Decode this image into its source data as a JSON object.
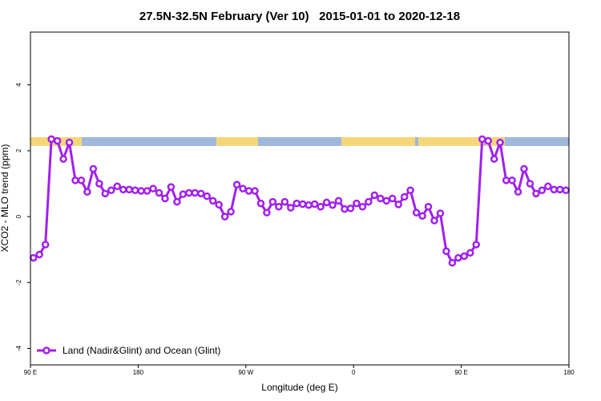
{
  "chart_data": {
    "type": "line",
    "title": "27.5N-32.5N February (Ver 10)   2015-01-01 to 2020-12-18",
    "x_label": "Longitude (deg E)",
    "y_label": "XCO2 - MLO trend (ppm)",
    "x": [
      92.5,
      97.5,
      102.5,
      107.5,
      112.5,
      117.5,
      122.5,
      127.5,
      132.5,
      137.5,
      142.5,
      147.5,
      152.5,
      157.5,
      162.5,
      167.5,
      172.5,
      177.5,
      182.5,
      187.5,
      192.5,
      197.5,
      202.5,
      207.5,
      212.5,
      217.5,
      222.5,
      227.5,
      232.5,
      237.5,
      242.5,
      247.5,
      252.5,
      257.5,
      262.5,
      267.5,
      272.5,
      277.5,
      282.5,
      287.5,
      292.5,
      297.5,
      302.5,
      307.5,
      312.5,
      317.5,
      322.5,
      327.5,
      332.5,
      337.5,
      342.5,
      347.5,
      352.5,
      357.5,
      362.5,
      367.5,
      372.5,
      377.5,
      382.5,
      387.5,
      392.5,
      397.5,
      402.5,
      407.5,
      412.5,
      417.5,
      422.5,
      427.5,
      432.5,
      437.5,
      442.5,
      447.5,
      452.5,
      457.5,
      462.5,
      467.5,
      472.5,
      477.5,
      482.5,
      487.5,
      492.5,
      497.5,
      502.5,
      507.5,
      512.5,
      517.5,
      522.5,
      527.5,
      532.5,
      537.5
    ],
    "series": [
      {
        "name": "Land (Nadir&Glint) and Ocean (Glint)",
        "color": "#a020f0",
        "values": [
          -1.25,
          -1.15,
          -0.85,
          2.35,
          2.3,
          1.75,
          2.25,
          1.1,
          1.1,
          0.75,
          1.45,
          1.0,
          0.7,
          0.8,
          0.92,
          0.82,
          0.82,
          0.8,
          0.78,
          0.78,
          0.85,
          0.72,
          0.55,
          0.9,
          0.45,
          0.68,
          0.72,
          0.72,
          0.7,
          0.62,
          0.48,
          0.36,
          0.0,
          0.15,
          0.97,
          0.85,
          0.78,
          0.78,
          0.4,
          0.12,
          0.45,
          0.3,
          0.45,
          0.27,
          0.4,
          0.38,
          0.35,
          0.38,
          0.3,
          0.43,
          0.35,
          0.48,
          0.23,
          0.25,
          0.4,
          0.3,
          0.45,
          0.65,
          0.55,
          0.48,
          0.55,
          0.37,
          0.6,
          0.8,
          0.12,
          0.02,
          0.3,
          -0.12,
          0.1,
          -1.05,
          -1.4,
          -1.25,
          -1.2,
          -1.1,
          -0.85,
          2.35,
          2.3,
          1.75,
          2.25,
          1.1,
          1.1,
          0.75,
          1.45,
          1.0,
          0.7,
          0.8,
          0.92,
          0.82,
          0.82,
          0.8
        ]
      }
    ],
    "xlim": [
      90,
      540
    ],
    "xticks": [
      {
        "value": 90,
        "label": "90 E"
      },
      {
        "value": 180,
        "label": "180"
      },
      {
        "value": 270,
        "label": "90 W"
      },
      {
        "value": 360,
        "label": "0"
      },
      {
        "value": 450,
        "label": "90 E"
      },
      {
        "value": 540,
        "label": "180"
      }
    ],
    "ylim": [
      -4.5,
      5.6
    ],
    "yticks": [
      -4,
      -2,
      0,
      2,
      4
    ],
    "legend": "bottomleft"
  }
}
